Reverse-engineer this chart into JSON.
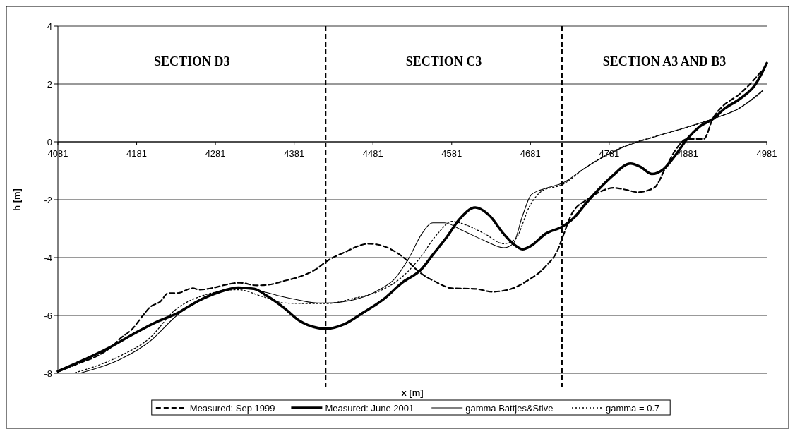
{
  "chart_data": {
    "type": "line",
    "xlabel": "x [m]",
    "ylabel": "h [m]",
    "xlim": [
      4081,
      4981
    ],
    "xticks": [
      4081,
      4181,
      4281,
      4381,
      4481,
      4581,
      4681,
      4781,
      4881,
      4981
    ],
    "ylim": [
      -8,
      4
    ],
    "yticks": [
      -8,
      -6,
      -4,
      -2,
      0,
      2,
      4
    ],
    "grid": "y",
    "legend": "bottom",
    "ref_lines": [
      {
        "axis": "x",
        "value": 4421,
        "line_style": "dashed",
        "color": "#000000"
      },
      {
        "axis": "x",
        "value": 4721,
        "line_style": "dashed",
        "color": "#000000"
      }
    ],
    "annotations": [
      "SECTION D3",
      "SECTION C3",
      "SECTION A3 AND B3"
    ],
    "series": [
      {
        "name": "Measured: Sep 1999",
        "color": "#000000",
        "line_style": "dashed",
        "x": [
          4081,
          4109,
          4133,
          4151,
          4160,
          4175,
          4189,
          4198,
          4211,
          4221,
          4232,
          4252,
          4261,
          4279,
          4297,
          4312,
          4333,
          4348,
          4369,
          4387,
          4411,
          4421,
          4444,
          4476,
          4498,
          4521,
          4539,
          4563,
          4581,
          4611,
          4632,
          4653,
          4677,
          4700,
          4716,
          4722,
          4734,
          4754,
          4769,
          4787,
          4803,
          4817,
          4838,
          4853,
          4865,
          4880,
          4901,
          4913,
          4925,
          4946,
          4964,
          4976
        ],
        "values": [
          -7.95,
          -7.64,
          -7.37,
          -7.04,
          -6.8,
          -6.48,
          -6.0,
          -5.71,
          -5.52,
          -5.23,
          -5.23,
          -5.06,
          -5.11,
          -5.04,
          -4.92,
          -4.87,
          -4.96,
          -4.94,
          -4.8,
          -4.67,
          -4.36,
          -4.15,
          -3.83,
          -3.52,
          -3.64,
          -4.02,
          -4.48,
          -4.87,
          -5.06,
          -5.08,
          -5.18,
          -5.11,
          -4.8,
          -4.31,
          -3.71,
          -3.28,
          -2.46,
          -1.98,
          -1.73,
          -1.59,
          -1.66,
          -1.74,
          -1.59,
          -0.87,
          -0.29,
          0.1,
          0.1,
          0.83,
          1.23,
          1.64,
          2.12,
          2.51
        ]
      },
      {
        "name": "Measured: June 2001",
        "color": "#000000",
        "line_style": "solid",
        "x": [
          4081,
          4115,
          4145,
          4175,
          4205,
          4232,
          4261,
          4285,
          4310,
          4330,
          4348,
          4369,
          4387,
          4411,
          4421,
          4444,
          4467,
          4494,
          4518,
          4543,
          4557,
          4575,
          4590,
          4611,
          4629,
          4647,
          4659,
          4671,
          4682,
          4700,
          4722,
          4736,
          4751,
          4767,
          4785,
          4808,
          4821,
          4835,
          4850,
          4865,
          4880,
          4895,
          4913,
          4928,
          4946,
          4967,
          4981
        ],
        "values": [
          -7.93,
          -7.52,
          -7.13,
          -6.67,
          -6.24,
          -5.93,
          -5.47,
          -5.2,
          -5.04,
          -5.08,
          -5.35,
          -5.76,
          -6.17,
          -6.43,
          -6.46,
          -6.31,
          -5.93,
          -5.45,
          -4.87,
          -4.39,
          -3.9,
          -3.28,
          -2.7,
          -2.27,
          -2.55,
          -3.18,
          -3.52,
          -3.71,
          -3.59,
          -3.18,
          -2.92,
          -2.63,
          -2.14,
          -1.66,
          -1.18,
          -0.75,
          -0.87,
          -1.11,
          -0.94,
          -0.46,
          0.1,
          0.51,
          0.8,
          1.16,
          1.47,
          2.0,
          2.72
        ]
      },
      {
        "name": "gamma Battjes&Stive",
        "color": "#000000",
        "line_style": "solid",
        "x": [
          4111,
          4160,
          4198,
          4232,
          4261,
          4292,
          4315,
          4339,
          4363,
          4387,
          4411,
          4421,
          4458,
          4489,
          4509,
          4527,
          4543,
          4557,
          4572,
          4593,
          4623,
          4647,
          4659,
          4671,
          4682,
          4700,
          4722,
          4752,
          4796,
          4841,
          4880,
          4913,
          4946,
          4976
        ],
        "values": [
          -7.98,
          -7.52,
          -6.89,
          -6.0,
          -5.45,
          -5.11,
          -5.04,
          -5.16,
          -5.33,
          -5.47,
          -5.57,
          -5.57,
          -5.45,
          -5.11,
          -4.72,
          -4.0,
          -3.18,
          -2.8,
          -2.8,
          -3.04,
          -3.42,
          -3.66,
          -3.52,
          -2.55,
          -1.83,
          -1.61,
          -1.42,
          -0.87,
          -0.22,
          0.19,
          0.51,
          0.8,
          1.16,
          1.78
        ]
      },
      {
        "name": "gamma = 0.7",
        "color": "#000000",
        "line_style": "dotted",
        "x": [
          4103,
          4160,
          4198,
          4229,
          4261,
          4310,
          4339,
          4369,
          4411,
          4421,
          4458,
          4489,
          4518,
          4539,
          4563,
          4581,
          4599,
          4623,
          4647,
          4662,
          4680,
          4695,
          4722,
          4752,
          4796,
          4841,
          4880,
          4913,
          4946,
          4976
        ],
        "values": [
          -7.98,
          -7.4,
          -6.77,
          -5.83,
          -5.35,
          -5.11,
          -5.33,
          -5.57,
          -5.59,
          -5.59,
          -5.4,
          -5.16,
          -4.67,
          -4.07,
          -3.18,
          -2.75,
          -2.87,
          -3.18,
          -3.52,
          -3.35,
          -2.22,
          -1.71,
          -1.47,
          -0.87,
          -0.2,
          0.2,
          0.5,
          0.8,
          1.16,
          1.75
        ]
      }
    ]
  }
}
